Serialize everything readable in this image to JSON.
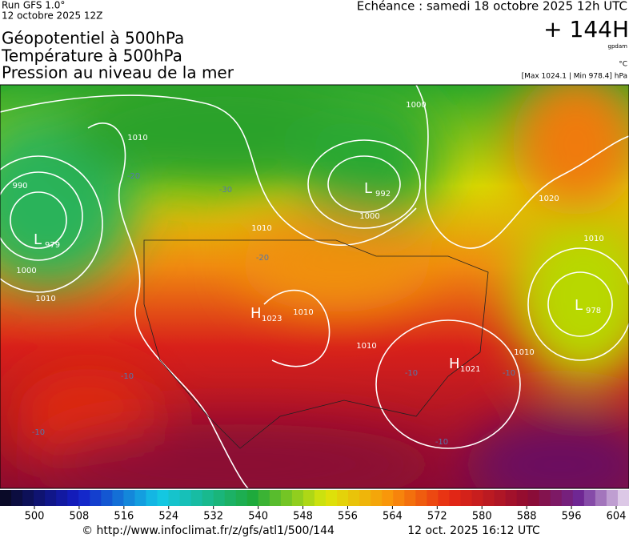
{
  "header": {
    "run": "Run GFS 1.0°",
    "date": "12 octobre 2025 12Z",
    "valid": "Echéance : samedi 18 octobre 2025 12h UTC",
    "lead": "+ 144H",
    "unit_geo": "gpdam",
    "unit_temp": "°C",
    "range": "[Max 1024.1 | Min 978.4] hPa",
    "titles": [
      "Géopotentiel à 500hPa",
      "Température à 500hPa",
      "Pression au niveau de la mer"
    ]
  },
  "map": {
    "centers": [
      {
        "letter": "L",
        "value": "979"
      },
      {
        "letter": "L",
        "value": "992"
      },
      {
        "letter": "H",
        "value": "1023"
      },
      {
        "letter": "H",
        "value": "1021"
      },
      {
        "letter": "L",
        "value": "978"
      }
    ],
    "isobar_labels": [
      "990",
      "1000",
      "1010",
      "1010",
      "1000",
      "1000",
      "1010",
      "1020",
      "1010",
      "1010",
      "1010",
      "1010"
    ],
    "temp_labels": [
      "-20",
      "-30",
      "-20",
      "-10",
      "-10",
      "-10",
      "-10",
      "-10"
    ]
  },
  "colorbar": {
    "ticks": [
      500,
      508,
      516,
      524,
      532,
      540,
      548,
      556,
      564,
      572,
      580,
      588,
      596,
      604
    ]
  },
  "footer": {
    "url": "© http://www.infoclimat.fr/z/gfs/atl1/500/144",
    "timestamp": "12 oct. 2025 16:12 UTC"
  }
}
